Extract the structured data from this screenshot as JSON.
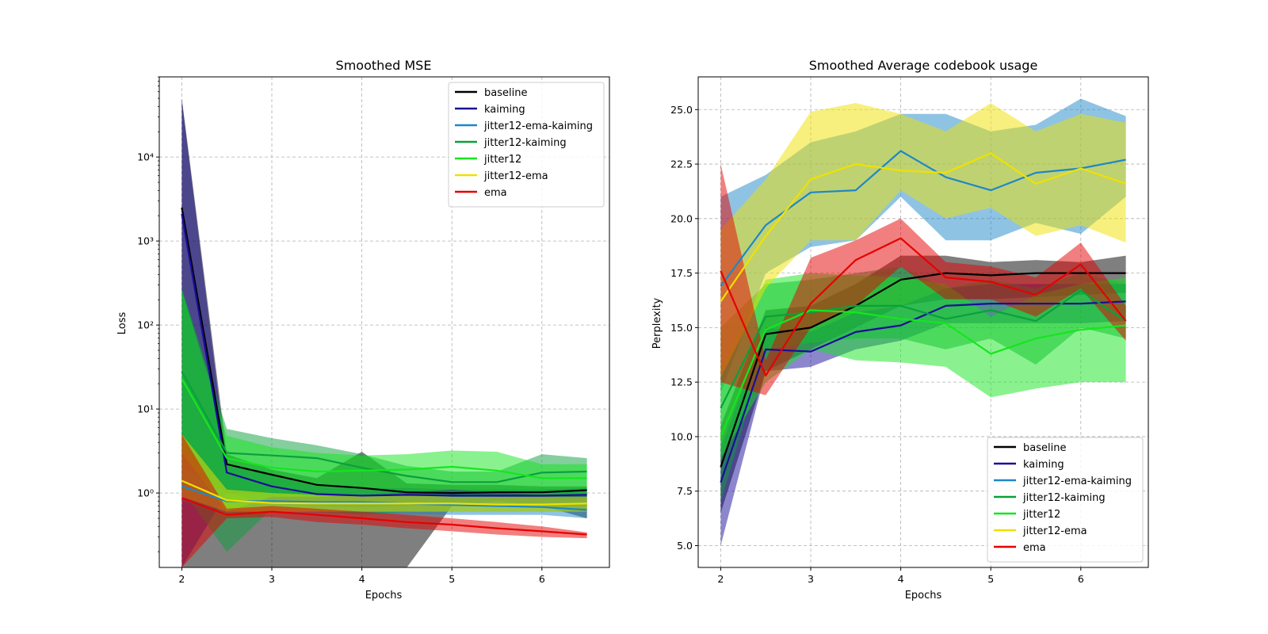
{
  "chart_data": [
    {
      "type": "line",
      "title": "Smoothed MSE",
      "xlabel": "Epochs",
      "ylabel": "Loss",
      "yscale": "log",
      "xlim": [
        1.75,
        6.75
      ],
      "ylim": [
        0.13,
        90000
      ],
      "xticks": [
        2,
        3,
        4,
        5,
        6
      ],
      "xtick_labels": [
        "2",
        "3",
        "4",
        "5",
        "6"
      ],
      "yticks": [
        1,
        10,
        100,
        1000,
        10000
      ],
      "ytick_labels": [
        "10^0",
        "10^1",
        "10^2",
        "10^3",
        "10^4"
      ],
      "grid": true,
      "legend_position": "upper right",
      "x": [
        2,
        2.5,
        3,
        3.5,
        4,
        4.5,
        5,
        5.5,
        6,
        6.5
      ],
      "series": [
        {
          "name": "baseline",
          "color": "#000000",
          "values": [
            2500,
            2.2,
            1.65,
            1.25,
            1.15,
            1.02,
            1.0,
            1.02,
            1.02,
            1.08
          ],
          "lower": [
            0.01,
            0.01,
            0.01,
            0.01,
            0.01,
            0.01,
            0.7,
            0.8,
            0.7,
            0.5
          ],
          "upper": [
            50000,
            2.9,
            1.9,
            1.5,
            3.1,
            1.3,
            1.25,
            1.25,
            1.2,
            1.2
          ]
        },
        {
          "name": "kaiming",
          "color": "#1a0e99",
          "values": [
            2100,
            1.75,
            1.2,
            0.97,
            0.93,
            0.95,
            0.93,
            0.93,
            0.93,
            0.95
          ],
          "lower": [
            0.01,
            1.0,
            0.75,
            0.7,
            0.68,
            0.7,
            0.7,
            0.7,
            0.7,
            0.7
          ],
          "upper": [
            48000,
            2.2,
            1.6,
            1.2,
            1.15,
            1.15,
            1.1,
            1.1,
            1.1,
            1.15
          ]
        },
        {
          "name": "jitter12-ema-kaiming",
          "color": "#1e87c8",
          "values": [
            1.2,
            0.8,
            0.8,
            0.78,
            0.78,
            0.75,
            0.72,
            0.7,
            0.68,
            0.63
          ],
          "lower": [
            0.8,
            0.6,
            0.6,
            0.58,
            0.57,
            0.56,
            0.55,
            0.55,
            0.55,
            0.5
          ],
          "upper": [
            2.0,
            1.0,
            1.0,
            0.98,
            0.98,
            0.95,
            0.92,
            0.9,
            0.88,
            0.85
          ]
        },
        {
          "name": "jitter12-kaiming",
          "color": "#0aa03c",
          "values": [
            28,
            3.0,
            2.8,
            2.6,
            2.0,
            1.6,
            1.35,
            1.35,
            1.75,
            1.8
          ],
          "lower": [
            1.1,
            0.2,
            0.65,
            0.6,
            0.55,
            0.6,
            0.6,
            0.6,
            0.6,
            0.6
          ],
          "upper": [
            280,
            5.8,
            4.5,
            3.7,
            2.9,
            2.1,
            1.8,
            1.8,
            2.9,
            2.6
          ]
        },
        {
          "name": "jitter12",
          "color": "#14e61e",
          "values": [
            23,
            2.6,
            2.0,
            1.8,
            1.85,
            1.9,
            2.05,
            1.85,
            1.5,
            1.5
          ],
          "lower": [
            3.0,
            0.6,
            0.9,
            0.9,
            0.95,
            1.0,
            1.1,
            1.0,
            0.95,
            0.95
          ],
          "upper": [
            260,
            4.8,
            3.5,
            3.0,
            2.8,
            2.9,
            3.2,
            3.1,
            2.2,
            2.2
          ]
        },
        {
          "name": "jitter12-ema",
          "color": "#f0e100",
          "values": [
            1.4,
            0.82,
            0.76,
            0.75,
            0.75,
            0.75,
            0.75,
            0.73,
            0.73,
            0.75
          ],
          "lower": [
            0.9,
            0.6,
            0.6,
            0.6,
            0.6,
            0.6,
            0.6,
            0.6,
            0.6,
            0.6
          ],
          "upper": [
            5.0,
            1.1,
            1.0,
            0.95,
            0.95,
            0.95,
            0.9,
            0.9,
            0.9,
            0.9
          ]
        },
        {
          "name": "ema",
          "color": "#e60000",
          "values": [
            0.87,
            0.55,
            0.6,
            0.55,
            0.5,
            0.45,
            0.42,
            0.38,
            0.35,
            0.32
          ],
          "lower": [
            0.01,
            0.5,
            0.52,
            0.45,
            0.42,
            0.38,
            0.35,
            0.32,
            0.3,
            0.29
          ],
          "upper": [
            5.0,
            0.65,
            0.7,
            0.65,
            0.6,
            0.55,
            0.5,
            0.45,
            0.4,
            0.34
          ]
        }
      ]
    },
    {
      "type": "line",
      "title": "Smoothed Average codebook usage",
      "xlabel": "Epochs",
      "ylabel": "Perplexity",
      "yscale": "linear",
      "xlim": [
        1.75,
        6.75
      ],
      "ylim": [
        4.0,
        26.5
      ],
      "xticks": [
        2,
        3,
        4,
        5,
        6
      ],
      "xtick_labels": [
        "2",
        "3",
        "4",
        "5",
        "6"
      ],
      "yticks": [
        5.0,
        7.5,
        10.0,
        12.5,
        15.0,
        17.5,
        20.0,
        22.5,
        25.0
      ],
      "ytick_labels": [
        "5.0",
        "7.5",
        "10.0",
        "12.5",
        "15.0",
        "17.5",
        "20.0",
        "22.5",
        "25.0"
      ],
      "grid": true,
      "legend_position": "lower right",
      "x": [
        2,
        2.5,
        3,
        3.5,
        4,
        4.5,
        5,
        5.5,
        6,
        6.5
      ],
      "series": [
        {
          "name": "baseline",
          "color": "#000000",
          "values": [
            8.6,
            14.7,
            15.0,
            16.0,
            17.2,
            17.5,
            17.4,
            17.5,
            17.5,
            17.5
          ],
          "lower": [
            6.5,
            13.0,
            14.0,
            15.0,
            16.0,
            16.3,
            16.3,
            16.4,
            16.5,
            16.6
          ],
          "upper": [
            10.5,
            15.8,
            16.0,
            17.0,
            18.3,
            18.3,
            18.0,
            18.1,
            18.0,
            18.3
          ]
        },
        {
          "name": "kaiming",
          "color": "#1a0e99",
          "values": [
            7.9,
            14.0,
            13.9,
            14.8,
            15.1,
            16.0,
            16.1,
            16.1,
            16.1,
            16.2
          ],
          "lower": [
            5.0,
            13.0,
            13.2,
            14.0,
            14.4,
            15.2,
            15.2,
            15.2,
            15.2,
            15.3
          ],
          "upper": [
            9.5,
            15.0,
            14.8,
            15.7,
            16.0,
            16.8,
            17.0,
            17.0,
            17.0,
            17.0
          ]
        },
        {
          "name": "jitter12-ema-kaiming",
          "color": "#1e87c8",
          "values": [
            16.9,
            19.7,
            21.2,
            21.3,
            23.1,
            21.9,
            21.3,
            22.1,
            22.3,
            22.7
          ],
          "lower": [
            12.0,
            17.5,
            18.7,
            19.0,
            21.0,
            19.0,
            19.0,
            19.8,
            19.3,
            21.0
          ],
          "upper": [
            21.0,
            22.0,
            23.5,
            24.0,
            24.8,
            24.8,
            24.0,
            24.3,
            25.5,
            24.7
          ]
        },
        {
          "name": "jitter12-kaiming",
          "color": "#0aa03c",
          "values": [
            11.3,
            15.5,
            15.7,
            16.0,
            16.0,
            15.4,
            15.8,
            15.3,
            16.7,
            15.3
          ],
          "lower": [
            7.0,
            14.0,
            14.3,
            14.5,
            14.5,
            14.0,
            14.5,
            13.3,
            15.0,
            14.5
          ],
          "upper": [
            15.0,
            17.0,
            17.2,
            17.5,
            17.8,
            16.8,
            17.2,
            16.8,
            17.5,
            17.0
          ]
        },
        {
          "name": "jitter12",
          "color": "#14e61e",
          "values": [
            10.0,
            14.9,
            15.8,
            15.7,
            15.4,
            15.2,
            13.8,
            14.5,
            14.9,
            15.1
          ],
          "lower": [
            9.0,
            12.5,
            14.0,
            13.5,
            13.4,
            13.2,
            11.8,
            12.2,
            12.5,
            12.5
          ],
          "upper": [
            13.0,
            17.2,
            17.5,
            17.4,
            17.3,
            17.0,
            15.5,
            16.5,
            17.0,
            17.3
          ]
        },
        {
          "name": "jitter12-ema",
          "color": "#f0e100",
          "values": [
            16.2,
            19.2,
            21.8,
            22.5,
            22.2,
            22.1,
            23.0,
            21.6,
            22.3,
            21.6
          ],
          "lower": [
            12.7,
            16.8,
            19.0,
            19.0,
            21.3,
            20.0,
            20.5,
            19.2,
            19.7,
            18.9
          ],
          "upper": [
            19.5,
            21.8,
            24.9,
            25.3,
            24.8,
            24.0,
            25.3,
            24.0,
            24.8,
            24.4
          ]
        },
        {
          "name": "ema",
          "color": "#e60000",
          "values": [
            17.6,
            12.8,
            16.1,
            18.1,
            19.1,
            17.3,
            17.1,
            16.5,
            17.9,
            15.3
          ],
          "lower": [
            12.5,
            11.9,
            15.0,
            16.0,
            17.8,
            16.3,
            16.3,
            15.5,
            16.8,
            14.4
          ],
          "upper": [
            22.5,
            13.5,
            18.2,
            19.0,
            20.0,
            18.0,
            17.8,
            17.3,
            18.9,
            16.0
          ]
        }
      ]
    }
  ]
}
